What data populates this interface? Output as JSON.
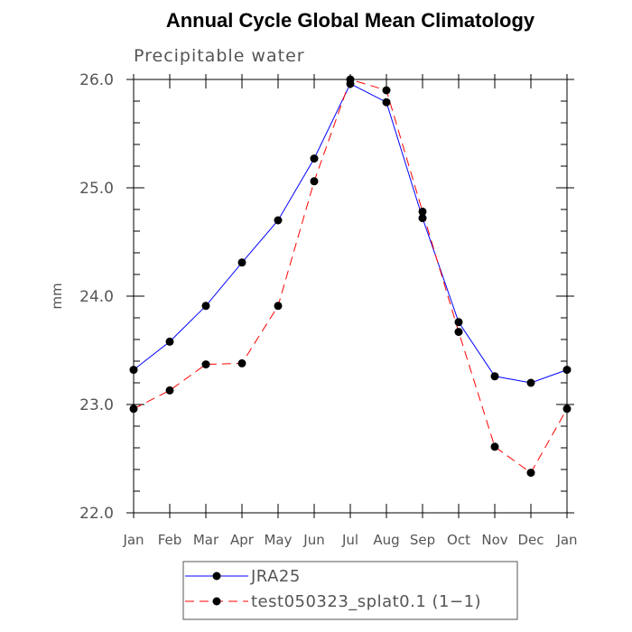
{
  "chart_data": {
    "type": "line",
    "title": "Annual Cycle Global Mean Climatology",
    "subtitle": "Precipitable water",
    "xlabel": "",
    "ylabel": "mm",
    "categories": [
      "Jan",
      "Feb",
      "Mar",
      "Apr",
      "May",
      "Jun",
      "Jul",
      "Aug",
      "Sep",
      "Oct",
      "Nov",
      "Dec",
      "Jan"
    ],
    "ylim": [
      22.0,
      26.0
    ],
    "yticks": [
      "22.0",
      "23.0",
      "24.0",
      "25.0",
      "26.0"
    ],
    "grid": false,
    "legend_position": "bottom",
    "series": [
      {
        "name": "JRA25",
        "color": "#0000ff",
        "line_style": "solid",
        "marker": "filled-circle",
        "values": [
          23.32,
          23.58,
          23.91,
          24.31,
          24.7,
          25.27,
          25.96,
          25.79,
          24.72,
          23.76,
          23.26,
          23.2,
          23.32
        ]
      },
      {
        "name": "test050323_splat0.1 (1−1)",
        "color": "#ff0000",
        "line_style": "dashed",
        "marker": "filled-circle",
        "values": [
          22.96,
          23.13,
          23.37,
          23.38,
          23.91,
          25.06,
          26.0,
          25.9,
          24.78,
          23.67,
          22.61,
          22.37,
          22.96
        ]
      }
    ]
  }
}
